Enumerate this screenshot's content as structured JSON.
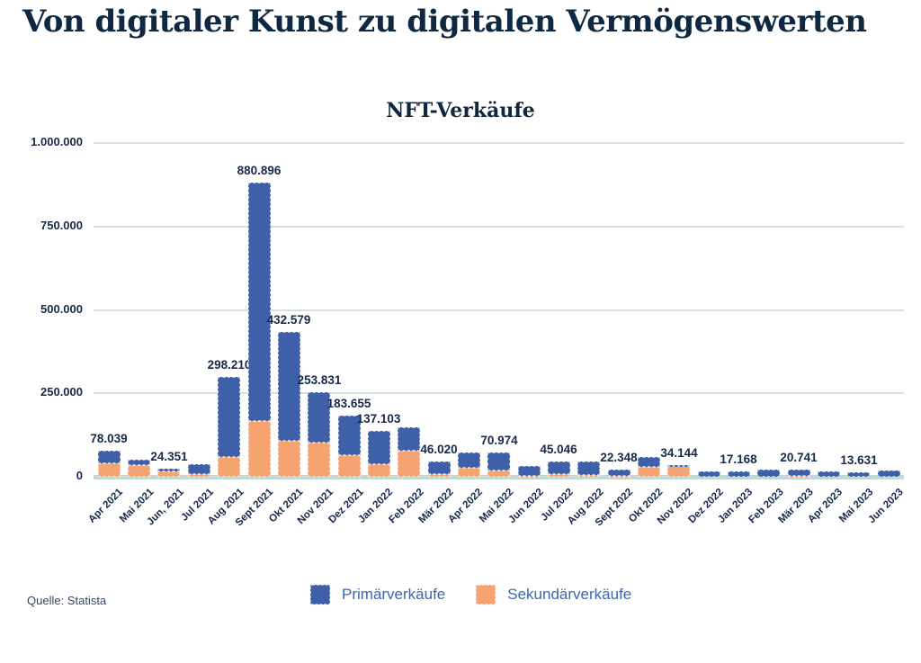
{
  "page": {
    "title": "Von digitaler Kunst zu digitalen Vermögenswerten",
    "source": "Quelle: Statista"
  },
  "chart_data": {
    "type": "bar",
    "subtype": "stacked-vertical",
    "title": "NFT-Verkäufe",
    "categories": [
      "Apr 2021",
      "Mai 2021",
      "Jun, 2021",
      "Jul 2021",
      "Aug 2021",
      "Sept 2021",
      "Okt 2021",
      "Nov 2021",
      "Dez 2021",
      "Jan 2022",
      "Feb 2022",
      "Mär 2022",
      "Apr 2022",
      "Mai 2022",
      "Jun 2022",
      "Jul 2022",
      "Aug 2022",
      "Sept 2022",
      "Okt 2022",
      "Nov 2022",
      "Dez 2022",
      "Jan 2023",
      "Feb 2023",
      "Mär 2023",
      "Apr 2023",
      "Mai 2023",
      "Jun 2023"
    ],
    "series": [
      {
        "name": "Primärverkäufe",
        "color": "#3d60a8",
        "values": [
          36500,
          16000,
          8351,
          29000,
          240000,
          715000,
          325000,
          152000,
          118655,
          99103,
          71000,
          38020,
          45000,
          53000,
          30000,
          37046,
          40000,
          19348,
          29000,
          2000,
          17000,
          17168,
          21000,
          18741,
          16000,
          13631,
          20000
        ]
      },
      {
        "name": "Sekundärverkäufe",
        "color": "#f5a371",
        "values": [
          41539,
          34000,
          16000,
          7000,
          58210,
          165896,
          107579,
          101831,
          65000,
          38000,
          79000,
          8000,
          26000,
          17974,
          4000,
          8000,
          5000,
          3000,
          29000,
          32144,
          0,
          0,
          0,
          2000,
          0,
          0,
          0
        ]
      }
    ],
    "total_labels": [
      "78.039",
      null,
      "24.351",
      null,
      "298.210",
      "880.896",
      "432.579",
      "253.831",
      "183.655",
      "137.103",
      null,
      "46.020",
      null,
      "70.974",
      null,
      "45.046",
      null,
      "22.348",
      null,
      "34.144",
      null,
      "17.168",
      null,
      "20.741",
      null,
      "13.631",
      null
    ],
    "yticks": [
      {
        "label": "0",
        "value": 0
      },
      {
        "label": "250.000",
        "value": 250000
      },
      {
        "label": "500.000",
        "value": 500000
      },
      {
        "label": "750.000",
        "value": 750000
      },
      {
        "label": "1.000.000",
        "value": 1000000
      }
    ],
    "ymax": 1000000,
    "grid": true,
    "grid_color": "#d3e2de",
    "baseline_color": "#c3d9d5",
    "label_color": "#16294b",
    "legend_position": "bottom",
    "legend_text_color": "#3a67b4"
  }
}
